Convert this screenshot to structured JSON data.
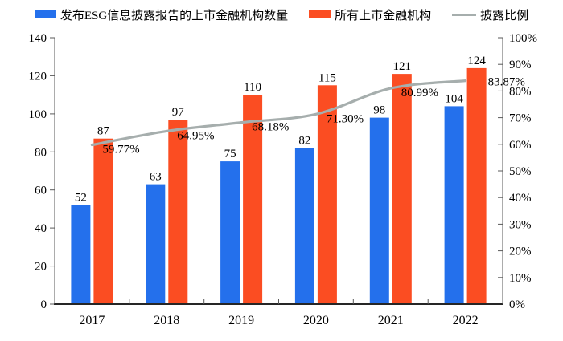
{
  "chart_data": {
    "type": "combo_bar_line",
    "title": "",
    "categories": [
      "2017",
      "2018",
      "2019",
      "2020",
      "2021",
      "2022"
    ],
    "series": [
      {
        "name": "发布ESG信息披露报告的上市金融机构数量",
        "type": "bar",
        "axis": "left",
        "color": "#2470EC",
        "values": [
          52,
          63,
          75,
          82,
          98,
          104
        ]
      },
      {
        "name": "所有上市金融机构",
        "type": "bar",
        "axis": "left",
        "color": "#FB4D22",
        "values": [
          87,
          97,
          110,
          115,
          121,
          124
        ]
      },
      {
        "name": "披露比例",
        "type": "line",
        "axis": "right",
        "color": "#A6AEAD",
        "values": [
          59.77,
          64.95,
          68.18,
          71.3,
          80.99,
          83.87
        ],
        "point_labels": [
          "59.77%",
          "64.95%",
          "68.18%",
          "71.30%",
          "80.99%",
          "83.87%"
        ]
      }
    ],
    "left_axis": {
      "min": 0,
      "max": 140,
      "step": 20,
      "ticks": [
        "0",
        "20",
        "40",
        "60",
        "80",
        "100",
        "120",
        "140"
      ]
    },
    "right_axis": {
      "min": 0,
      "max": 100,
      "step": 10,
      "ticks": [
        "0%",
        "10%",
        "20%",
        "30%",
        "40%",
        "50%",
        "60%",
        "70%",
        "80%",
        "90%",
        "100%"
      ]
    },
    "legend_position": "top",
    "grid": false
  }
}
